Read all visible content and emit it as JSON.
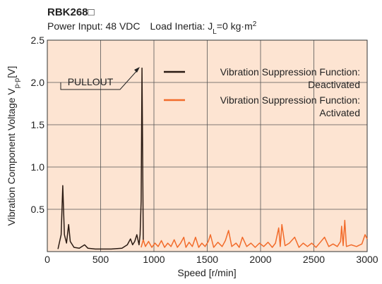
{
  "chart_data": {
    "type": "line",
    "title": "RBK268□",
    "subtitle": [
      {
        "text": "Power Input: 48 VDC  Load Inertia: J"
      },
      {
        "text": "L",
        "shift": "sub"
      },
      {
        "text": "=0 kg·m"
      },
      {
        "text": "2",
        "shift": "super"
      }
    ],
    "ylabel": [
      {
        "text": "Vibration Component Voltage V"
      },
      {
        "text": "p-p",
        "shift": "sub"
      },
      {
        "text": "[V]"
      }
    ],
    "xlabel": "Speed [r/min]",
    "annotation": "PULLOUT",
    "xlim": [
      0,
      3000
    ],
    "xticks": [
      0,
      500,
      1000,
      1500,
      2000,
      2500,
      3000
    ],
    "ylim": [
      0,
      2.5
    ],
    "yticks": [
      0.5,
      {
        "value": 1,
        "label": "1.0"
      },
      1.5,
      {
        "value": 2,
        "label": "2.0"
      },
      2.5
    ],
    "grid": true,
    "background": "#fde4d2",
    "series": [
      {
        "name": "Vibration Suppression Function:\nDeactivated",
        "color": "#2a1a12",
        "x": [
          100,
          130,
          145,
          160,
          180,
          200,
          215,
          250,
          300,
          350,
          380,
          450,
          600,
          700,
          750,
          780,
          800,
          820,
          840,
          860,
          870,
          880,
          888,
          900
        ],
        "values": [
          0.03,
          0.2,
          0.78,
          0.2,
          0.1,
          0.32,
          0.12,
          0.05,
          0.04,
          0.08,
          0.04,
          0.03,
          0.03,
          0.04,
          0.08,
          0.15,
          0.08,
          0.12,
          0.2,
          0.08,
          0.2,
          0.6,
          2.17,
          0.14
        ]
      },
      {
        "name": "Vibration Suppression Function:\nActivated",
        "color": "#f26b2a",
        "x": [
          880,
          900,
          920,
          950,
          980,
          1010,
          1040,
          1070,
          1100,
          1130,
          1160,
          1190,
          1220,
          1250,
          1280,
          1300,
          1330,
          1360,
          1390,
          1420,
          1450,
          1480,
          1510,
          1530,
          1560,
          1600,
          1640,
          1670,
          1700,
          1730,
          1770,
          1800,
          1830,
          1870,
          1910,
          1950,
          1990,
          2030,
          2070,
          2110,
          2140,
          2170,
          2185,
          2200,
          2230,
          2270,
          2320,
          2360,
          2400,
          2440,
          2480,
          2520,
          2560,
          2600,
          2640,
          2680,
          2720,
          2750,
          2760,
          2775,
          2790,
          2805,
          2850,
          2900,
          2950,
          2980,
          3000
        ],
        "values": [
          0.05,
          0.14,
          0.06,
          0.12,
          0.05,
          0.1,
          0.06,
          0.13,
          0.05,
          0.1,
          0.06,
          0.14,
          0.05,
          0.1,
          0.17,
          0.05,
          0.11,
          0.06,
          0.17,
          0.05,
          0.1,
          0.06,
          0.12,
          0.2,
          0.05,
          0.11,
          0.06,
          0.13,
          0.25,
          0.06,
          0.1,
          0.05,
          0.17,
          0.06,
          0.1,
          0.05,
          0.1,
          0.06,
          0.11,
          0.05,
          0.1,
          0.28,
          0.06,
          0.32,
          0.07,
          0.1,
          0.17,
          0.05,
          0.1,
          0.06,
          0.1,
          0.05,
          0.11,
          0.17,
          0.06,
          0.09,
          0.06,
          0.12,
          0.3,
          0.07,
          0.37,
          0.06,
          0.08,
          0.06,
          0.09,
          0.2,
          0.15
        ]
      }
    ]
  }
}
